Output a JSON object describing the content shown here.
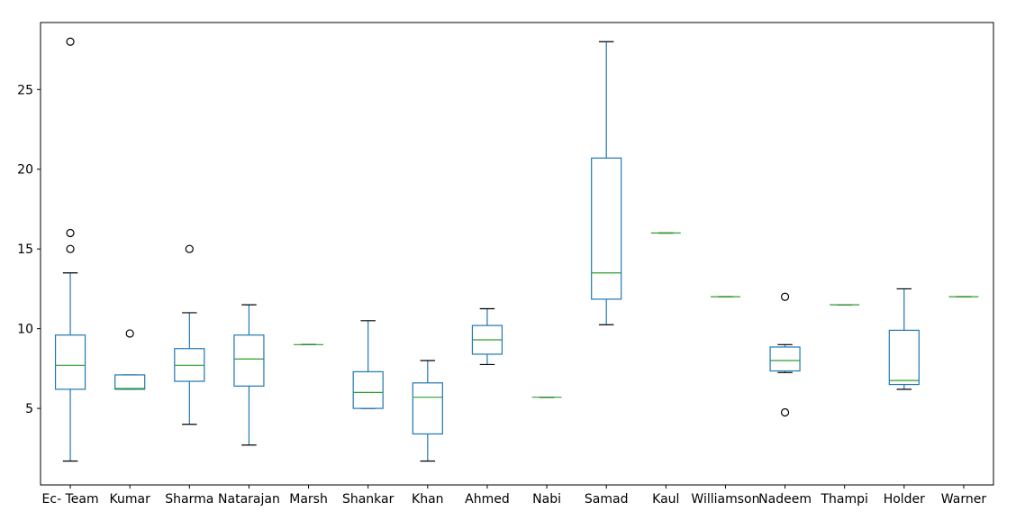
{
  "chart_data": {
    "type": "box",
    "ylim": [
      0.2,
      29.2
    ],
    "yticks": [
      5,
      10,
      15,
      20,
      25
    ],
    "colors": {
      "box": "#1f77b4",
      "median": "#2ca02c",
      "whisker": "#1f77b4",
      "cap": "#000000",
      "flier": "#000000"
    },
    "boxes": [
      {
        "label": "Ec- Team",
        "whislo": 1.7,
        "q1": 6.2,
        "med": 7.7,
        "q3": 9.6,
        "whishi": 13.5,
        "fliers": [
          15.0,
          16.0,
          28.0
        ]
      },
      {
        "label": "Kumar",
        "whislo": 6.2,
        "q1": 6.2,
        "med": 6.25,
        "q3": 7.1,
        "whishi": 7.1,
        "fliers": [
          9.7
        ]
      },
      {
        "label": "Sharma",
        "whislo": 4.0,
        "q1": 6.7,
        "med": 7.7,
        "q3": 8.75,
        "whishi": 11.0,
        "fliers": [
          15.0
        ]
      },
      {
        "label": "Natarajan",
        "whislo": 2.7,
        "q1": 6.4,
        "med": 8.1,
        "q3": 9.6,
        "whishi": 11.5,
        "fliers": []
      },
      {
        "label": "Marsh",
        "whislo": 9.0,
        "q1": 9.0,
        "med": 9.0,
        "q3": 9.0,
        "whishi": 9.0,
        "fliers": []
      },
      {
        "label": "Shankar",
        "whislo": 5.0,
        "q1": 5.0,
        "med": 6.0,
        "q3": 7.3,
        "whishi": 10.5,
        "fliers": []
      },
      {
        "label": "Khan",
        "whislo": 1.7,
        "q1": 3.4,
        "med": 5.7,
        "q3": 6.6,
        "whishi": 8.0,
        "fliers": []
      },
      {
        "label": "Ahmed",
        "whislo": 7.75,
        "q1": 8.4,
        "med": 9.3,
        "q3": 10.2,
        "whishi": 11.25,
        "fliers": []
      },
      {
        "label": "Nabi",
        "whislo": 5.7,
        "q1": 5.7,
        "med": 5.7,
        "q3": 5.7,
        "whishi": 5.7,
        "fliers": []
      },
      {
        "label": "Samad",
        "whislo": 10.25,
        "q1": 11.85,
        "med": 13.5,
        "q3": 20.7,
        "whishi": 28.0,
        "fliers": []
      },
      {
        "label": "Kaul",
        "whislo": 16.0,
        "q1": 16.0,
        "med": 16.0,
        "q3": 16.0,
        "whishi": 16.0,
        "fliers": []
      },
      {
        "label": "Williamson",
        "whislo": 12.0,
        "q1": 12.0,
        "med": 12.0,
        "q3": 12.0,
        "whishi": 12.0,
        "fliers": []
      },
      {
        "label": "Nadeem",
        "whislo": 7.25,
        "q1": 7.35,
        "med": 8.0,
        "q3": 8.85,
        "whishi": 9.0,
        "fliers": [
          4.75,
          12.0
        ]
      },
      {
        "label": "Thampi",
        "whislo": 11.5,
        "q1": 11.5,
        "med": 11.5,
        "q3": 11.5,
        "whishi": 11.5,
        "fliers": []
      },
      {
        "label": "Holder",
        "whislo": 6.2,
        "q1": 6.5,
        "med": 6.75,
        "q3": 9.9,
        "whishi": 12.5,
        "fliers": []
      },
      {
        "label": "Warner",
        "whislo": 12.0,
        "q1": 12.0,
        "med": 12.0,
        "q3": 12.0,
        "whishi": 12.0,
        "fliers": []
      }
    ]
  }
}
